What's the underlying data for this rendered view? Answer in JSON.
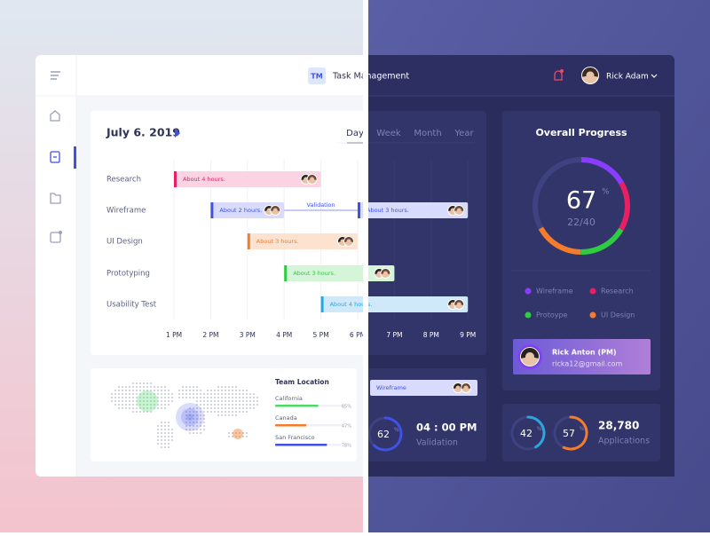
{
  "header": {
    "logo": "TM",
    "title": "Task Management",
    "user": "Rick Adam"
  },
  "schedule": {
    "date": "July 6. 2019",
    "views": [
      "Day",
      "Week",
      "Month",
      "Year"
    ],
    "hours": [
      {
        "value": 13,
        "label": "1 PM"
      },
      {
        "value": 14,
        "label": "2 PM"
      },
      {
        "value": 15,
        "label": "3 PM"
      },
      {
        "value": 16,
        "label": "4 PM"
      },
      {
        "value": 17,
        "label": "5 PM"
      },
      {
        "value": 18,
        "label": "6 PM"
      },
      {
        "value": 19,
        "label": "7 PM"
      },
      {
        "value": 20,
        "label": "8 PM"
      },
      {
        "value": 21,
        "label": "9 PM"
      }
    ],
    "tasks": [
      {
        "name": "Research",
        "color": "#e91e63",
        "fill": "#fbd3e3",
        "bars": [
          {
            "start": 13,
            "end": 17,
            "label": "About 4 hours."
          }
        ]
      },
      {
        "name": "Wireframe",
        "color": "#3f51e6",
        "fill": "#d8dbfb",
        "bars": [
          {
            "start": 14,
            "end": 16,
            "label": "About 2 hours."
          },
          {
            "start": 18,
            "end": 21,
            "label": "About 3 hours."
          }
        ]
      },
      {
        "name": "UI Design",
        "color": "#f57c2b",
        "fill": "#fde3cf",
        "bars": [
          {
            "start": 15,
            "end": 18,
            "label": "About 3 hours."
          }
        ]
      },
      {
        "name": "Prototyping",
        "color": "#2ecc40",
        "fill": "#d5f5d8",
        "bars": [
          {
            "start": 16,
            "end": 19,
            "label": "About 3 hours."
          }
        ]
      },
      {
        "name": "Usability Test",
        "color": "#29a8e0",
        "fill": "#cfe8fa",
        "bars": [
          {
            "start": 17,
            "end": 21,
            "label": "About 4 hours."
          }
        ]
      }
    ],
    "milestone": {
      "label": "Validation",
      "start": 16,
      "end": 18
    }
  },
  "team_location": {
    "title": "Team Location",
    "places": [
      {
        "name": "California",
        "value": 65,
        "label": "65%",
        "color": "#4cd964"
      },
      {
        "name": "Canada",
        "value": 47,
        "label": "47%",
        "color": "#f57c2b"
      },
      {
        "name": "San Francisco",
        "value": 78,
        "label": "78%",
        "color": "#3f51e6"
      }
    ]
  },
  "upcoming": {
    "task": "Wireframe",
    "progress": {
      "value": 62,
      "unit": "%",
      "color": "#3f51e6"
    },
    "time": "04 : 00 PM",
    "label": "Validation"
  },
  "overall": {
    "title": "Overall Progress",
    "value": 67,
    "unit": "%",
    "count": "22/40",
    "legend": [
      {
        "name": "Wireframe",
        "color": "#8b3dff"
      },
      {
        "name": "Research",
        "color": "#e91e63"
      },
      {
        "name": "Protoype",
        "color": "#2ecc40"
      },
      {
        "name": "UI Design",
        "color": "#f57c2b"
      }
    ]
  },
  "manager": {
    "name": "Rick Anton (PM)",
    "email": "ricka12@gmail.com"
  },
  "stats": {
    "rings": [
      {
        "value": 42,
        "unit": "%",
        "color": "#29a8e0"
      },
      {
        "value": 57,
        "unit": "%",
        "color": "#f57c2b"
      }
    ],
    "count": "28,780",
    "label": "Applications"
  }
}
